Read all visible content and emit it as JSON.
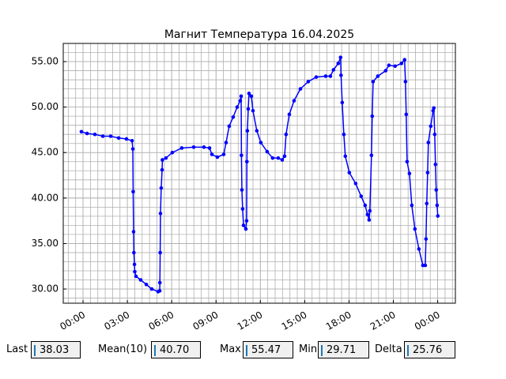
{
  "chart_data": {
    "type": "line",
    "title": "Магнит Температура 16.04.2025",
    "x": [
      -0.11,
      0.27,
      0.8,
      1.34,
      1.87,
      2.41,
      2.94,
      3.32,
      3.37,
      3.39,
      3.42,
      3.44,
      3.48,
      3.5,
      3.58,
      3.9,
      4.28,
      4.65,
      5.08,
      5.19,
      5.2,
      5.22,
      5.24,
      5.29,
      5.35,
      5.37,
      5.61,
      6.04,
      6.68,
      7.49,
      8.18,
      8.56,
      8.72,
      9.09,
      9.52,
      9.68,
      9.89,
      10.16,
      10.43,
      10.64,
      10.7,
      10.72,
      10.75,
      10.8,
      10.86,
      11.02,
      11.07,
      11.09,
      11.12,
      11.18,
      11.23,
      11.39,
      11.5,
      11.76,
      12.03,
      12.46,
      12.83,
      13.21,
      13.48,
      13.64,
      13.74,
      13.96,
      14.28,
      14.71,
      15.24,
      15.78,
      16.42,
      16.74,
      16.95,
      17.27,
      17.43,
      17.46,
      17.54,
      17.65,
      17.75,
      18.02,
      18.45,
      18.82,
      19.09,
      19.25,
      19.36,
      19.41,
      19.52,
      19.57,
      19.63,
      19.95,
      20.48,
      20.7,
      21.12,
      21.55,
      21.76,
      21.82,
      21.87,
      21.93,
      22.09,
      22.25,
      22.46,
      22.73,
      23.0,
      23.16,
      23.21,
      23.26,
      23.32,
      23.37,
      23.53,
      23.69,
      23.74,
      23.8,
      23.85,
      23.9,
      23.96,
      24.01
    ],
    "series": [
      {
        "color": "#0000ff",
        "values": [
          47.3,
          47.1,
          47.0,
          46.8,
          46.8,
          46.6,
          46.5,
          46.3,
          45.4,
          40.7,
          36.3,
          34.0,
          32.7,
          31.9,
          31.4,
          31.0,
          30.5,
          30.0,
          29.71,
          29.8,
          30.7,
          34.0,
          38.3,
          41.1,
          43.1,
          44.2,
          44.4,
          45.0,
          45.5,
          45.6,
          45.6,
          45.5,
          44.8,
          44.5,
          44.8,
          46.1,
          47.9,
          48.9,
          50.0,
          50.7,
          51.2,
          44.7,
          40.9,
          38.8,
          37.0,
          36.6,
          37.5,
          44.0,
          47.4,
          49.8,
          51.5,
          51.2,
          49.6,
          47.4,
          46.1,
          45.1,
          44.4,
          44.4,
          44.2,
          44.6,
          47.0,
          49.2,
          50.7,
          52.0,
          52.8,
          53.3,
          53.4,
          53.4,
          54.1,
          54.8,
          55.47,
          53.5,
          50.5,
          47.0,
          44.6,
          42.8,
          41.6,
          40.2,
          39.2,
          38.2,
          37.6,
          38.6,
          44.7,
          49.0,
          52.8,
          53.4,
          54.0,
          54.6,
          54.5,
          54.8,
          55.2,
          52.8,
          49.2,
          44.0,
          42.7,
          39.2,
          36.6,
          34.4,
          32.6,
          32.6,
          35.5,
          39.4,
          42.8,
          46.1,
          47.9,
          49.6,
          49.9,
          47.0,
          43.7,
          40.9,
          39.2,
          38.03
        ]
      }
    ],
    "xlim": [
      -1.34,
      25.2
    ],
    "ylim": [
      28.44,
      57.0
    ],
    "xticks": [
      {
        "value": 0,
        "label": "00:00"
      },
      {
        "value": 3,
        "label": "03:00"
      },
      {
        "value": 6,
        "label": "06:00"
      },
      {
        "value": 9,
        "label": "09:00"
      },
      {
        "value": 12,
        "label": "12:00"
      },
      {
        "value": 15,
        "label": "15:00"
      },
      {
        "value": 18,
        "label": "18:00"
      },
      {
        "value": 21,
        "label": "21:00"
      },
      {
        "value": 24,
        "label": "00:00"
      }
    ],
    "yticks": [
      {
        "value": 30,
        "label": "30.00"
      },
      {
        "value": 35,
        "label": "35.00"
      },
      {
        "value": 40,
        "label": "40.00"
      },
      {
        "value": 45,
        "label": "45.00"
      },
      {
        "value": 50,
        "label": "50.00"
      },
      {
        "value": 55,
        "label": "55.00"
      }
    ],
    "grid": true,
    "minor_xstep": 0.5,
    "minor_ystep": 1
  },
  "stats": [
    {
      "label": "Last",
      "value": "38.03"
    },
    {
      "label": "Mean(10)",
      "value": "40.70"
    },
    {
      "label": "Max",
      "value": "55.47"
    },
    {
      "label": "Min",
      "value": "29.71"
    },
    {
      "label": "Delta",
      "value": "25.76"
    }
  ]
}
